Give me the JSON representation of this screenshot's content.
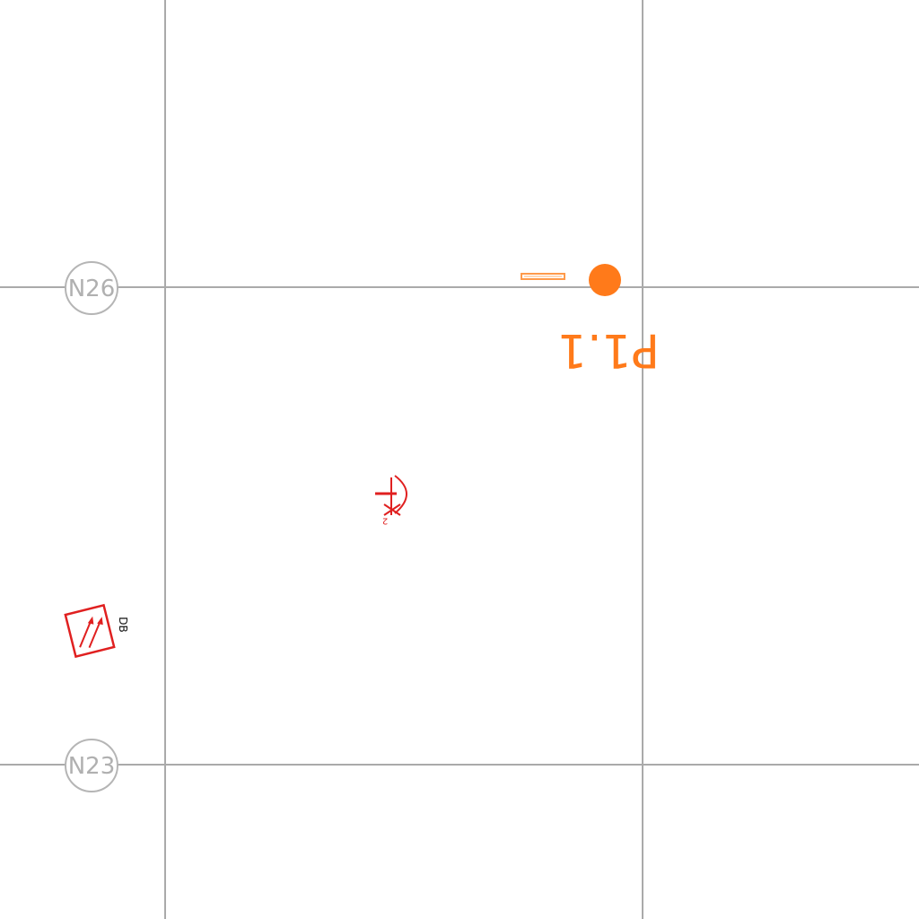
{
  "gridlines": {
    "vertical": [
      "",
      ""
    ],
    "horizontal": [
      "N26",
      "N23"
    ]
  },
  "bubbles": {
    "top": "N26",
    "bottom": "N23"
  },
  "column_tag": {
    "label": "P1.1",
    "color": "#ff7a1a"
  },
  "symbols": {
    "distribution_board": {
      "label": "DB",
      "color": "#e02020"
    },
    "outlet": {
      "label": "2",
      "color": "#e02020"
    }
  },
  "colors": {
    "grid": "#aaaaaa",
    "bubble": "#b5b5b5",
    "column": "#ff7a1a",
    "electrical": "#e02020"
  }
}
